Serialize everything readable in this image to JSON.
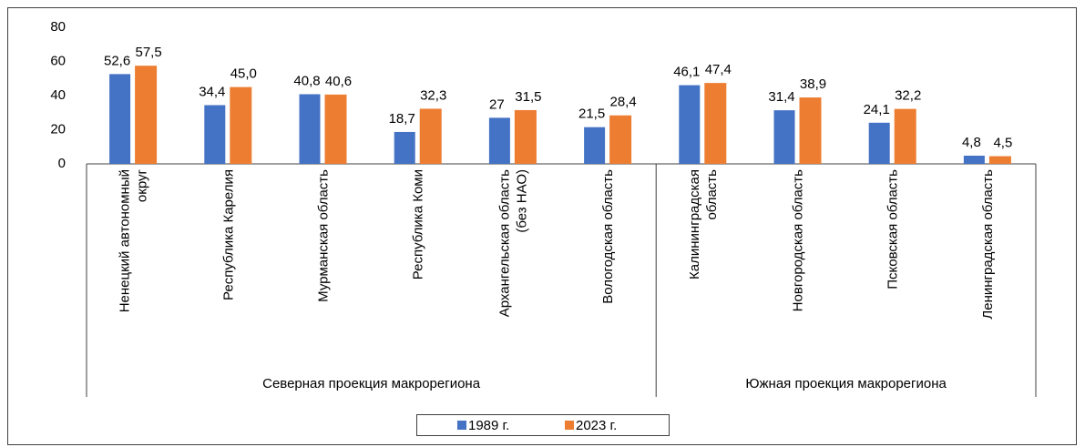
{
  "chart_data": {
    "type": "bar",
    "categories": [
      [
        "Ненецкий автономный",
        "округ"
      ],
      [
        "Республика Карелия"
      ],
      [
        "Мурманская область"
      ],
      [
        "Республика Коми"
      ],
      [
        "Архангельская область",
        "(без НАО)"
      ],
      [
        "Вологодская область"
      ],
      [
        "Калининградская",
        "область"
      ],
      [
        "Новгородская область"
      ],
      [
        "Псковская область"
      ],
      [
        "Ленинградская область"
      ]
    ],
    "groups": [
      {
        "name": "Северная проекция макрорегиона",
        "span": 6
      },
      {
        "name": "Южная проекция макрорегиона",
        "span": 4
      }
    ],
    "series": [
      {
        "name": "1989 г.",
        "color": "#4472c4",
        "values": [
          52.6,
          34.4,
          40.8,
          18.7,
          27,
          21.5,
          46.1,
          31.4,
          24.1,
          4.8
        ],
        "value_labels": [
          "52,6",
          "34,4",
          "40,8",
          "18,7",
          "27",
          "21,5",
          "46,1",
          "31,4",
          "24,1",
          "4,8"
        ]
      },
      {
        "name": "2023 г.",
        "color": "#ed7d31",
        "values": [
          57.5,
          45.0,
          40.6,
          32.3,
          31.5,
          28.4,
          47.4,
          38.9,
          32.2,
          4.5
        ],
        "value_labels": [
          "57,5",
          "45,0",
          "40,6",
          "32,3",
          "31,5",
          "28,4",
          "47,4",
          "38,9",
          "32,2",
          "4,5"
        ]
      }
    ],
    "ylim": [
      0,
      80
    ],
    "yticks": [
      0,
      20,
      40,
      60,
      80
    ],
    "grid": false,
    "legend": "bottom"
  }
}
